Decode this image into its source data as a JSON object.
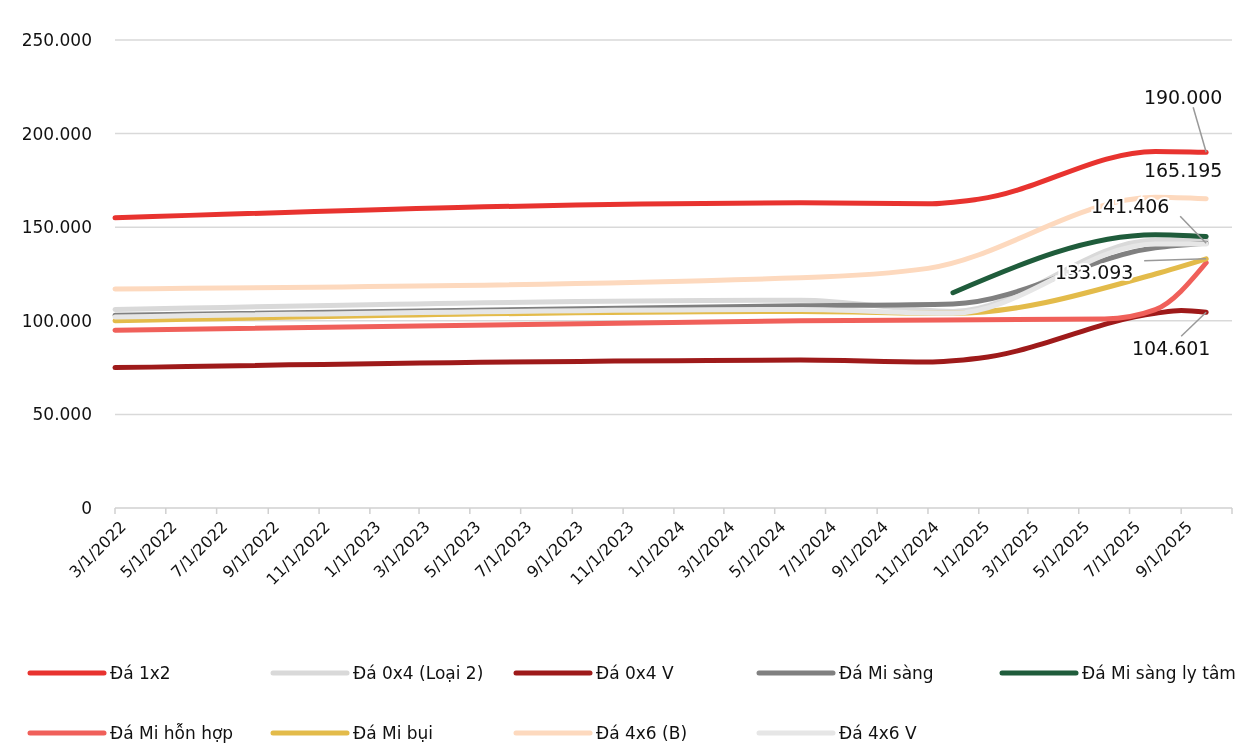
{
  "chart_data": {
    "type": "line",
    "series": [
      {
        "name": "Đá 1x2",
        "color": "#e8332f",
        "x": [
          "2022-03",
          "2024-06",
          "2024-11",
          "2025-01",
          "2025-08",
          "2025-10"
        ],
        "values": [
          155000,
          163000,
          162500,
          165000,
          190500,
          190000
        ]
      },
      {
        "name": "Đá 0x4 (Loại 2)",
        "color": "#d9d9d9",
        "x": [
          "2022-03",
          "2024-06",
          "2024-12",
          "2025-08",
          "2025-10"
        ],
        "values": [
          106000,
          111000,
          105000,
          143000,
          143000
        ]
      },
      {
        "name": "Đá 0x4 V",
        "color": "#9e1a1a",
        "x": [
          "2022-03",
          "2024-06",
          "2024-11",
          "2025-01",
          "2025-08",
          "2025-09",
          "2025-10"
        ],
        "values": [
          75000,
          79000,
          78000,
          80000,
          104000,
          105500,
          104601
        ]
      },
      {
        "name": "Đá Mi sàng",
        "color": "#808080",
        "x": [
          "2022-03",
          "2024-06",
          "2024-12",
          "2025-08",
          "2025-10"
        ],
        "values": [
          103000,
          108000,
          109000,
          139000,
          141406
        ]
      },
      {
        "name": "Đá Mi sàng ly tâm",
        "color": "#1f5c3b",
        "x": [
          "2024-12",
          "2025-08",
          "2025-10"
        ],
        "values": [
          115000,
          146000,
          145000
        ]
      },
      {
        "name": "Đá Mi hỗn hợp",
        "color": "#f0605a",
        "x": [
          "2022-03",
          "2024-06",
          "2025-06",
          "2025-08",
          "2025-10"
        ],
        "values": [
          95000,
          100000,
          101000,
          106000,
          131000
        ]
      },
      {
        "name": "Đá Mi bụi",
        "color": "#e3bb4a",
        "x": [
          "2022-03",
          "2024-06",
          "2024-12",
          "2025-08",
          "2025-10"
        ],
        "values": [
          100000,
          105000,
          104000,
          125000,
          133093
        ]
      },
      {
        "name": "Đá 4x6 (B)",
        "color": "#fdd9be",
        "x": [
          "2022-03",
          "2024-06",
          "2024-11",
          "2025-08",
          "2025-10"
        ],
        "values": [
          117000,
          123000,
          128000,
          166000,
          165195
        ]
      },
      {
        "name": "Đá 4x6 V",
        "color": "#e6e6e6",
        "x": [
          "2022-03",
          "2024-06",
          "2024-12",
          "2025-08",
          "2025-10"
        ],
        "values": [
          102000,
          106000,
          104000,
          141000,
          141000
        ]
      }
    ],
    "xlim": [
      "2022-03-01",
      "2025-11-01"
    ],
    "xticks": [
      {
        "value": "2022-03-01",
        "label": "3/1/2022"
      },
      {
        "value": "2022-05-01",
        "label": "5/1/2022"
      },
      {
        "value": "2022-07-01",
        "label": "7/1/2022"
      },
      {
        "value": "2022-09-01",
        "label": "9/1/2022"
      },
      {
        "value": "2022-11-01",
        "label": "11/1/2022"
      },
      {
        "value": "2023-01-01",
        "label": "1/1/2023"
      },
      {
        "value": "2023-03-01",
        "label": "3/1/2023"
      },
      {
        "value": "2023-05-01",
        "label": "5/1/2023"
      },
      {
        "value": "2023-07-01",
        "label": "7/1/2023"
      },
      {
        "value": "2023-09-01",
        "label": "9/1/2023"
      },
      {
        "value": "2023-11-01",
        "label": "11/1/2023"
      },
      {
        "value": "2024-01-01",
        "label": "1/1/2024"
      },
      {
        "value": "2024-03-01",
        "label": "3/1/2024"
      },
      {
        "value": "2024-05-01",
        "label": "5/1/2024"
      },
      {
        "value": "2024-07-01",
        "label": "7/1/2024"
      },
      {
        "value": "2024-09-01",
        "label": "9/1/2024"
      },
      {
        "value": "2024-11-01",
        "label": "11/1/2024"
      },
      {
        "value": "2025-01-01",
        "label": "1/1/2025"
      },
      {
        "value": "2025-03-01",
        "label": "3/1/2025"
      },
      {
        "value": "2025-05-01",
        "label": "5/1/2025"
      },
      {
        "value": "2025-07-01",
        "label": "7/1/2025"
      },
      {
        "value": "2025-09-01",
        "label": "9/1/2025"
      },
      {
        "value": "2025-11-01",
        "label": null
      }
    ],
    "ylim": [
      0,
      250000
    ],
    "yticks": [
      0,
      {
        "value": 50000,
        "label": "50.000"
      },
      {
        "value": 100000,
        "label": "100.000"
      },
      {
        "value": 150000,
        "label": "150.000"
      },
      {
        "value": 200000,
        "label": "200.000"
      },
      {
        "value": 250000,
        "label": "250.000"
      }
    ],
    "grid": "y",
    "legend": "bottom",
    "marker": "none",
    "line_style": "solid",
    "annotations": [
      {
        "text": "190.000",
        "x": "2025-10",
        "y": 190000
      },
      {
        "text": "165.195",
        "x": "2025-10",
        "y": 165195
      },
      {
        "text": "141.406",
        "x": "2025-10",
        "y": 141406
      },
      {
        "text": "133.093",
        "x": "2025-10",
        "y": 133093
      },
      {
        "text": "104.601",
        "x": "2025-10",
        "y": 104601
      }
    ]
  }
}
